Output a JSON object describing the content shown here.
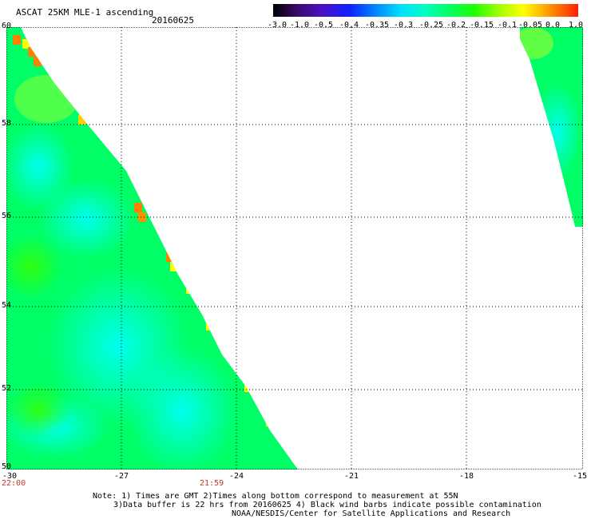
{
  "header": {
    "title": "ASCAT 25KM MLE-1 ascending",
    "date": "20160625"
  },
  "colorbar": {
    "labels": [
      "-3.0",
      "-1.0",
      "-0.5",
      "-0.4",
      "-0.35",
      "-0.3",
      "-0.25",
      "-0.2",
      "-0.15",
      "-0.1",
      "-0.05",
      "0.0",
      "1.0"
    ]
  },
  "axes": {
    "lat_labels": [
      "60",
      "58",
      "56",
      "54",
      "52",
      "50"
    ],
    "lon_labels": [
      "-30",
      "-27",
      "-24",
      "-21",
      "-18",
      "-15"
    ]
  },
  "times": {
    "left": "22:00",
    "middle": "21:59"
  },
  "notes": {
    "line1": "Note: 1) Times are GMT 2)Times along bottom correspond to measurement at 55N",
    "line2": "3)Data buffer is 22 hrs from 20160625 4) Black wind barbs indicate possible contamination",
    "line3": "NOAA/NESDIS/Center for Satellite Applications and Research"
  },
  "colors": {
    "swath_main": "#00ff66",
    "swath_cyan": "#00ffee",
    "swath_yellow": "#ffff00",
    "swath_orange": "#ff8000",
    "time_text": "#c0392b"
  }
}
